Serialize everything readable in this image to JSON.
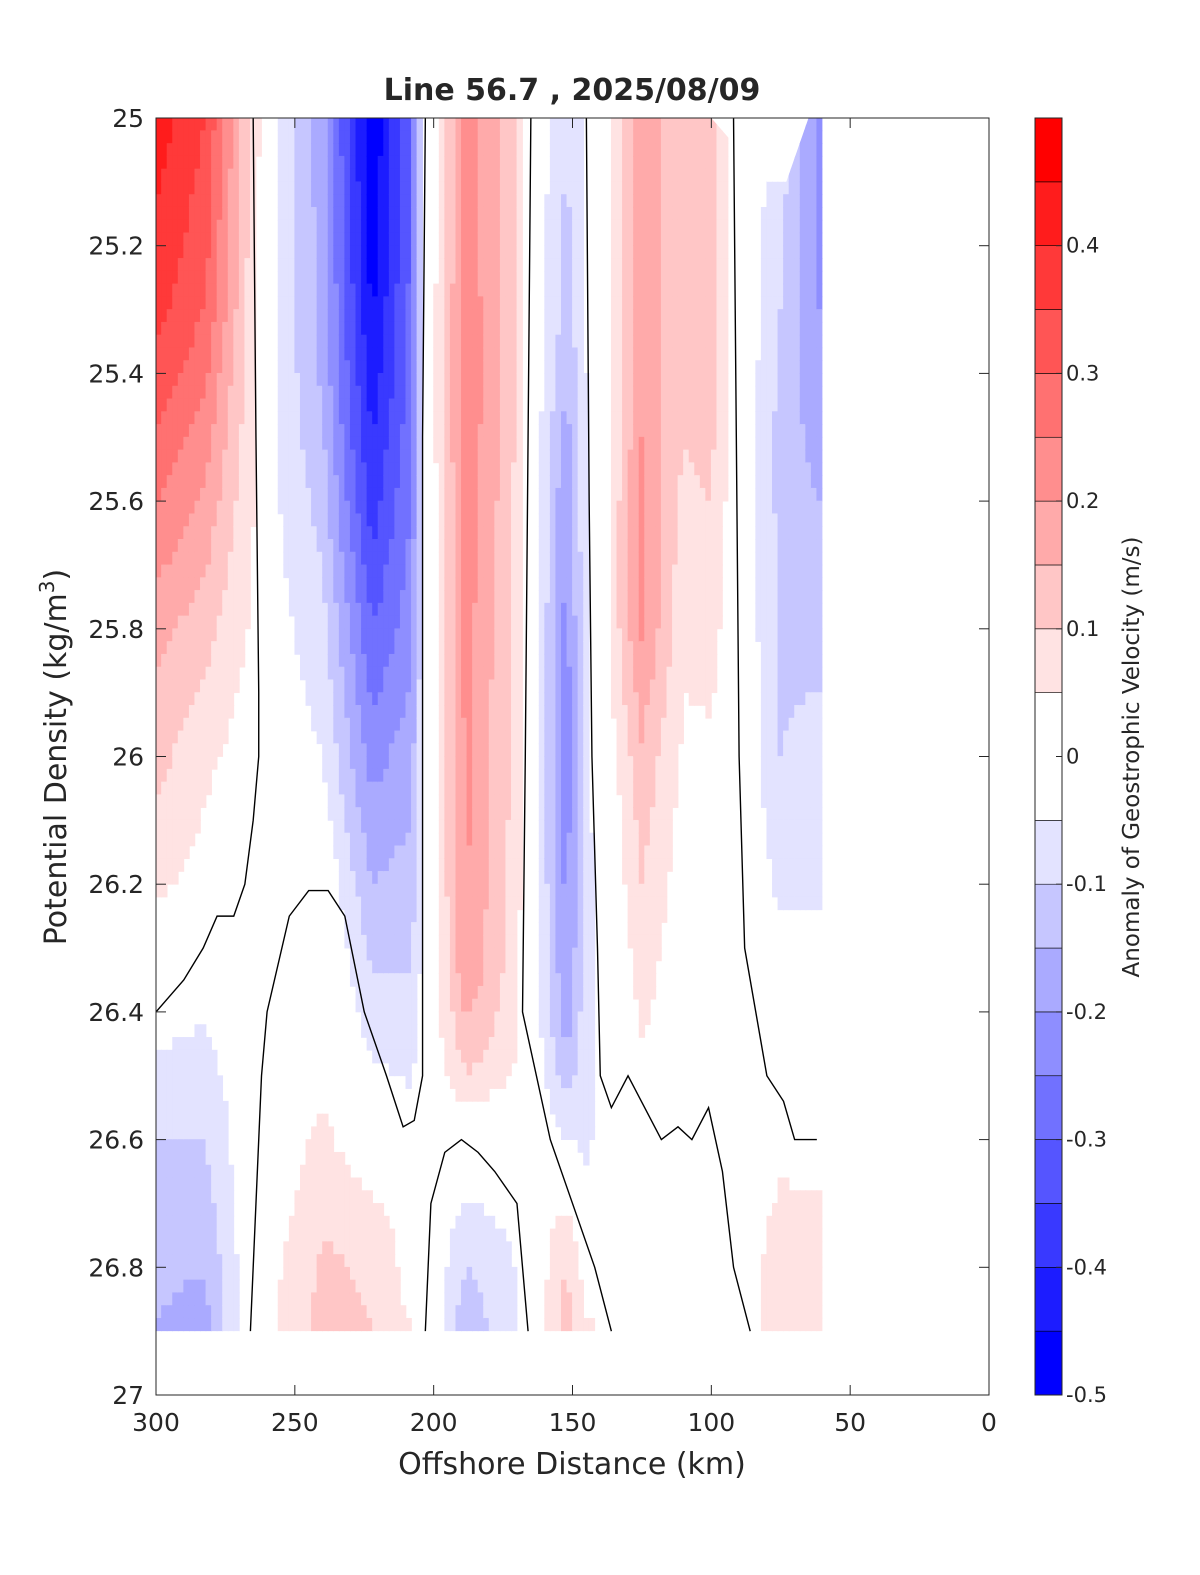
{
  "chart_data": {
    "type": "heatmap",
    "title": "Line 56.7 , 2025/08/09",
    "xlabel": "Offshore Distance (km)",
    "ylabel_text": "Potential Density (kg/m",
    "ylabel_sup": "3",
    "ylabel_close": ")",
    "colorbar_label": "Anomaly of Geostrophic Velocity (m/s)",
    "xlim": [
      300,
      0
    ],
    "ylim": [
      25,
      27
    ],
    "x_reversed": true,
    "y_reversed": true,
    "x_ticks": [
      300,
      250,
      200,
      150,
      100,
      50,
      0
    ],
    "x_tick_labels": [
      "300",
      "250",
      "200",
      "150",
      "100",
      "50",
      "0"
    ],
    "y_ticks": [
      25,
      25.2,
      25.4,
      25.6,
      25.8,
      26,
      26.2,
      26.4,
      26.6,
      26.8,
      27
    ],
    "y_tick_labels": [
      "25",
      "25.2",
      "25.4",
      "25.6",
      "25.8",
      "26",
      "26.2",
      "26.4",
      "26.6",
      "26.8",
      "27"
    ],
    "colorbar": {
      "range": [
        -0.5,
        0.5
      ],
      "levels": [
        -0.5,
        -0.45,
        -0.4,
        -0.35,
        -0.3,
        -0.25,
        -0.2,
        -0.15,
        -0.1,
        -0.05,
        0.05,
        0.1,
        0.15,
        0.2,
        0.25,
        0.3,
        0.35,
        0.4,
        0.45,
        0.5
      ],
      "tick_values": [
        0.4,
        0.3,
        0.2,
        0.1,
        0,
        -0.1,
        -0.2,
        -0.3,
        -0.4,
        -0.5
      ],
      "tick_labels": [
        "0.4",
        "0.3",
        "0.2",
        "0.1",
        "0",
        "-0.1",
        "-0.2",
        "-0.3",
        "-0.4",
        "-0.5"
      ],
      "colormap": "blue-white-red",
      "neg_color": "#0000ff",
      "pos_color": "#ff0000"
    },
    "grid": false,
    "data_extent": {
      "x": [
        60,
        300
      ],
      "y": [
        25,
        26.9
      ]
    },
    "stations_km": [
      300,
      280,
      265,
      240,
      220,
      200,
      185,
      165,
      150,
      130,
      110,
      90,
      75,
      60
    ],
    "column_profiles": [
      {
        "x": 300,
        "profile": [
          [
            25.0,
            0.43
          ],
          [
            25.3,
            0.37
          ],
          [
            25.5,
            0.3
          ],
          [
            25.8,
            0.17
          ],
          [
            26.0,
            0.12
          ],
          [
            26.2,
            0.06
          ],
          [
            26.35,
            0.0
          ],
          [
            26.55,
            -0.09
          ],
          [
            26.75,
            -0.14
          ],
          [
            26.9,
            -0.15
          ]
        ]
      },
      {
        "x": 282,
        "profile": [
          [
            25.0,
            0.35
          ],
          [
            25.3,
            0.3
          ],
          [
            25.5,
            0.22
          ],
          [
            25.8,
            0.12
          ],
          [
            26.0,
            0.06
          ],
          [
            26.2,
            0.03
          ],
          [
            26.45,
            -0.06
          ],
          [
            26.65,
            -0.11
          ],
          [
            26.9,
            -0.17
          ]
        ]
      },
      {
        "x": 265,
        "profile": [
          [
            25.0,
            0.08
          ],
          [
            25.5,
            0.06
          ],
          [
            25.8,
            0.04
          ],
          [
            26.2,
            0.0
          ],
          [
            26.6,
            0.0
          ],
          [
            26.9,
            0.0
          ]
        ]
      },
      {
        "x": 255,
        "profile": [
          [
            25.0,
            -0.06
          ],
          [
            25.5,
            -0.06
          ],
          [
            26.0,
            -0.02
          ],
          [
            26.3,
            0.0
          ],
          [
            26.6,
            0.02
          ],
          [
            26.9,
            0.06
          ]
        ]
      },
      {
        "x": 240,
        "profile": [
          [
            25.0,
            -0.18
          ],
          [
            25.4,
            -0.16
          ],
          [
            25.8,
            -0.08
          ],
          [
            26.0,
            -0.05
          ],
          [
            26.2,
            0.0
          ],
          [
            26.5,
            0.04
          ],
          [
            26.75,
            0.1
          ],
          [
            26.9,
            0.12
          ]
        ]
      },
      {
        "x": 222,
        "profile": [
          [
            25.0,
            -0.5
          ],
          [
            25.3,
            -0.46
          ],
          [
            25.6,
            -0.38
          ],
          [
            25.8,
            -0.3
          ],
          [
            26.0,
            -0.22
          ],
          [
            26.2,
            -0.15
          ],
          [
            26.4,
            -0.08
          ],
          [
            26.6,
            0.0
          ],
          [
            26.75,
            0.09
          ],
          [
            26.9,
            0.1
          ]
        ]
      },
      {
        "x": 208,
        "profile": [
          [
            25.0,
            -0.3
          ],
          [
            25.4,
            -0.28
          ],
          [
            25.8,
            -0.22
          ],
          [
            26.1,
            -0.15
          ],
          [
            26.4,
            -0.09
          ],
          [
            26.55,
            -0.04
          ],
          [
            26.9,
            0.05
          ]
        ]
      },
      {
        "x": 202,
        "profile": [
          [
            25.0,
            0.0
          ],
          [
            26.0,
            0.0
          ],
          [
            26.5,
            0.0
          ],
          [
            26.9,
            0.0
          ]
        ]
      },
      {
        "x": 188,
        "profile": [
          [
            25.0,
            0.22
          ],
          [
            25.4,
            0.24
          ],
          [
            25.8,
            0.22
          ],
          [
            26.1,
            0.21
          ],
          [
            26.35,
            0.19
          ],
          [
            26.5,
            0.1
          ],
          [
            26.6,
            0.0
          ],
          [
            26.75,
            -0.08
          ],
          [
            26.9,
            -0.14
          ]
        ]
      },
      {
        "x": 172,
        "profile": [
          [
            25.0,
            0.13
          ],
          [
            25.5,
            0.12
          ],
          [
            25.8,
            0.1
          ],
          [
            26.2,
            0.09
          ],
          [
            26.45,
            0.07
          ],
          [
            26.6,
            0.0
          ],
          [
            26.8,
            -0.06
          ],
          [
            26.9,
            -0.06
          ]
        ]
      },
      {
        "x": 165,
        "profile": [
          [
            25.0,
            0.0
          ],
          [
            26.0,
            0.0
          ],
          [
            26.5,
            0.0
          ],
          [
            26.9,
            0.0
          ]
        ]
      },
      {
        "x": 152,
        "profile": [
          [
            25.0,
            -0.1
          ],
          [
            25.3,
            -0.12
          ],
          [
            25.6,
            -0.2
          ],
          [
            25.8,
            -0.22
          ],
          [
            26.0,
            -0.23
          ],
          [
            26.3,
            -0.21
          ],
          [
            26.45,
            -0.16
          ],
          [
            26.6,
            -0.05
          ],
          [
            26.75,
            0.09
          ],
          [
            26.9,
            0.13
          ]
        ]
      },
      {
        "x": 145,
        "profile": [
          [
            25.0,
            -0.04
          ],
          [
            25.8,
            -0.06
          ],
          [
            26.2,
            -0.07
          ],
          [
            26.5,
            -0.07
          ],
          [
            26.65,
            -0.05
          ],
          [
            26.9,
            0.06
          ]
        ]
      },
      {
        "x": 125,
        "profile": [
          [
            25.0,
            0.18
          ],
          [
            25.5,
            0.2
          ],
          [
            25.8,
            0.21
          ],
          [
            26.0,
            0.14
          ],
          [
            26.2,
            0.1
          ],
          [
            26.4,
            0.06
          ],
          [
            26.6,
            0.0
          ],
          [
            26.9,
            0.0
          ]
        ]
      },
      {
        "x": 110,
        "profile": [
          [
            25.0,
            0.12
          ],
          [
            25.5,
            0.1
          ],
          [
            25.8,
            0.06
          ],
          [
            26.2,
            0.02
          ],
          [
            26.5,
            0.0
          ],
          [
            26.9,
            0.0
          ]
        ]
      },
      {
        "x": 100,
        "profile": [
          [
            25.0,
            0.14
          ],
          [
            25.4,
            0.13
          ],
          [
            25.6,
            0.1
          ],
          [
            26.0,
            0.04
          ],
          [
            26.4,
            0.0
          ],
          [
            26.9,
            0.0
          ]
        ]
      },
      {
        "x": 90,
        "profile": [
          [
            25.0,
            0.0
          ],
          [
            26.0,
            0.0
          ],
          [
            26.9,
            0.0
          ]
        ]
      },
      {
        "x": 75,
        "profile": [
          [
            25.1,
            -0.08
          ],
          [
            25.5,
            -0.12
          ],
          [
            26.0,
            -0.1
          ],
          [
            26.2,
            -0.06
          ],
          [
            26.5,
            0.0
          ],
          [
            26.8,
            0.09
          ]
        ]
      },
      {
        "x": 62,
        "profile": [
          [
            25.0,
            -0.2
          ],
          [
            25.3,
            -0.2
          ],
          [
            25.6,
            -0.15
          ],
          [
            25.9,
            -0.1
          ],
          [
            26.2,
            -0.06
          ],
          [
            26.5,
            0.0
          ],
          [
            26.8,
            0.08
          ]
        ]
      }
    ],
    "zero_contours": [
      [
        [
          265,
          25.0
        ],
        [
          264,
          25.5
        ],
        [
          263,
          25.9
        ],
        [
          263,
          26.0
        ],
        [
          265,
          26.1
        ],
        [
          268,
          26.2
        ],
        [
          272,
          26.25
        ],
        [
          278,
          26.25
        ],
        [
          283,
          26.3
        ],
        [
          290,
          26.35
        ],
        [
          300,
          26.4
        ]
      ],
      [
        [
          203,
          25.0
        ],
        [
          204,
          25.5
        ],
        [
          204,
          26.0
        ],
        [
          204,
          26.5
        ],
        [
          207,
          26.57
        ],
        [
          211,
          26.58
        ],
        [
          217,
          26.5
        ],
        [
          225,
          26.4
        ],
        [
          232,
          26.25
        ],
        [
          238,
          26.21
        ],
        [
          245,
          26.21
        ],
        [
          252,
          26.25
        ],
        [
          260,
          26.4
        ],
        [
          262,
          26.5
        ],
        [
          264,
          26.7
        ],
        [
          266,
          26.9
        ]
      ],
      [
        [
          165,
          25.0
        ],
        [
          166,
          25.5
        ],
        [
          167,
          26.0
        ],
        [
          168,
          26.4
        ],
        [
          163,
          26.5
        ],
        [
          158,
          26.6
        ],
        [
          150,
          26.7
        ],
        [
          142,
          26.8
        ],
        [
          136,
          26.9
        ]
      ],
      [
        [
          145,
          25.0
        ],
        [
          144,
          25.6
        ],
        [
          143,
          26.0
        ],
        [
          141,
          26.3
        ],
        [
          140,
          26.5
        ],
        [
          136,
          26.55
        ],
        [
          130,
          26.5
        ],
        [
          124,
          26.55
        ],
        [
          118,
          26.6
        ],
        [
          112,
          26.58
        ],
        [
          107,
          26.6
        ],
        [
          101,
          26.55
        ],
        [
          96,
          26.65
        ],
        [
          92,
          26.8
        ],
        [
          86,
          26.9
        ]
      ],
      [
        [
          92,
          25.0
        ],
        [
          91,
          25.5
        ],
        [
          90,
          26.0
        ],
        [
          88,
          26.3
        ],
        [
          84,
          26.4
        ],
        [
          80,
          26.5
        ],
        [
          74,
          26.54
        ],
        [
          70,
          26.6
        ],
        [
          62,
          26.6
        ]
      ],
      [
        [
          203,
          26.9
        ],
        [
          201,
          26.7
        ],
        [
          196,
          26.62
        ],
        [
          190,
          26.6
        ],
        [
          184,
          26.62
        ],
        [
          178,
          26.65
        ],
        [
          170,
          26.7
        ],
        [
          166,
          26.9
        ]
      ]
    ]
  }
}
